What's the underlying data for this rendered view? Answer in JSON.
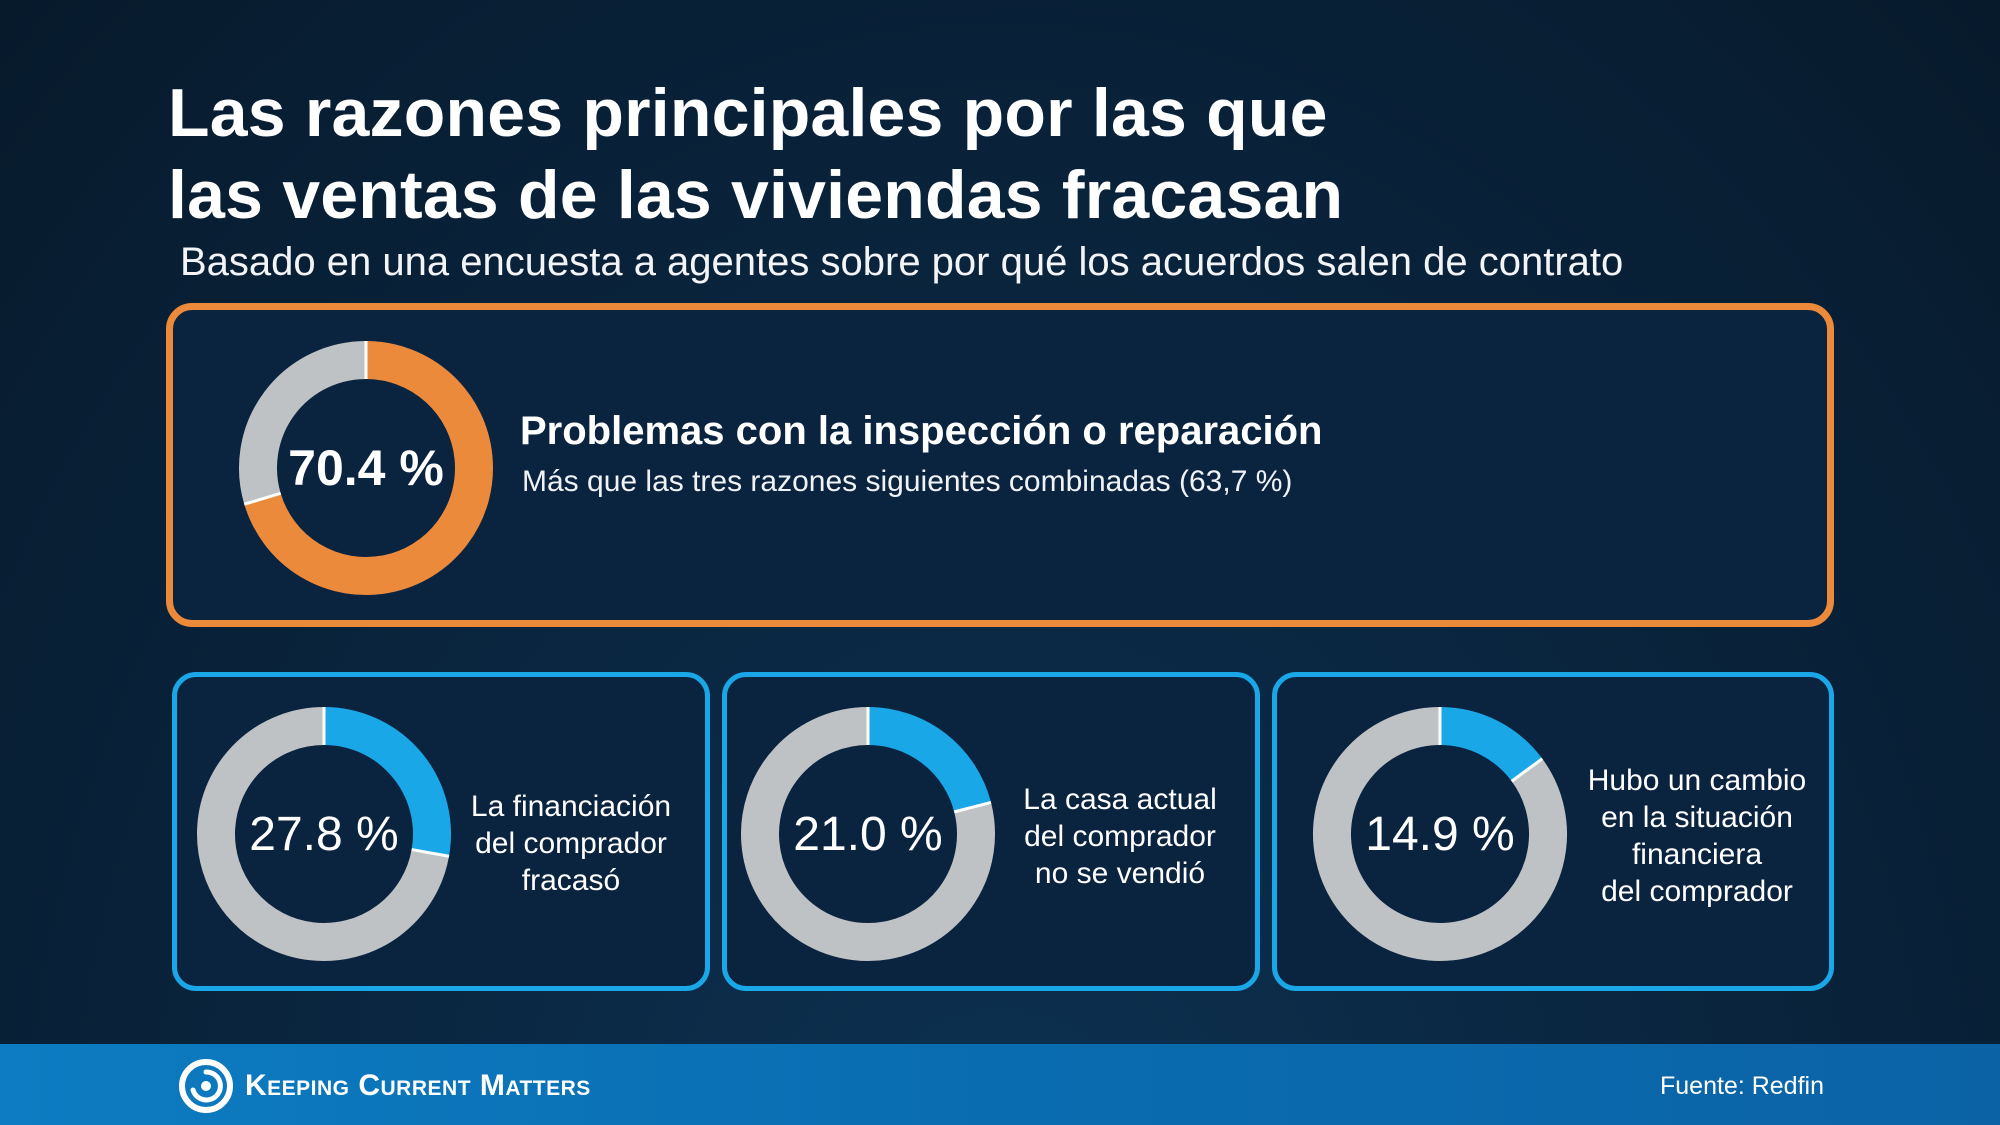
{
  "title_line1": "Las razones principales por las que",
  "title_line2": "las ventas de las viviendas fracasan",
  "subtitle": "Basado en una encuesta a agentes sobre por qué los acuerdos salen de contrato",
  "colors": {
    "highlight": "#EC8A3B",
    "accent": "#1AA7E8",
    "remainder": "#BFC2C5",
    "footer": "#0B6FB4"
  },
  "main": {
    "value_label": "70.4 %",
    "heading": "Problemas con la inspección o reparación",
    "description": "Más que las tres razones siguientes combinadas (63,7 %)"
  },
  "cards": [
    {
      "value_label": "27.8 %",
      "label": "La financiación\ndel comprador\nfracasó"
    },
    {
      "value_label": "21.0 %",
      "label": "La casa actual\ndel comprador\nno se vendió"
    },
    {
      "value_label": "14.9 %",
      "label": "Hubo un cambio\nen la situación\nfinanciera\ndel comprador"
    }
  ],
  "footer": {
    "brand": "Keeping Current Matters",
    "brand_icon": "kcm-swirl-icon",
    "source": "Fuente: Redfin"
  },
  "chart_data": [
    {
      "type": "pie",
      "style": "donut",
      "categories": [
        "Problemas con la inspección o reparación",
        ""
      ],
      "values": [
        70.4,
        29.6
      ],
      "colors": [
        "#EC8A3B",
        "#BFC2C5"
      ]
    },
    {
      "type": "pie",
      "style": "donut",
      "categories": [
        "La financiación del comprador fracasó",
        ""
      ],
      "values": [
        27.8,
        72.2
      ],
      "colors": [
        "#1AA7E8",
        "#BFC2C5"
      ]
    },
    {
      "type": "pie",
      "style": "donut",
      "categories": [
        "La casa actual del comprador no se vendió",
        ""
      ],
      "values": [
        21.0,
        79.0
      ],
      "colors": [
        "#1AA7E8",
        "#BFC2C5"
      ]
    },
    {
      "type": "pie",
      "style": "donut",
      "categories": [
        "Hubo un cambio en la situación financiera del comprador",
        ""
      ],
      "values": [
        14.9,
        85.1
      ],
      "colors": [
        "#1AA7E8",
        "#BFC2C5"
      ]
    }
  ]
}
